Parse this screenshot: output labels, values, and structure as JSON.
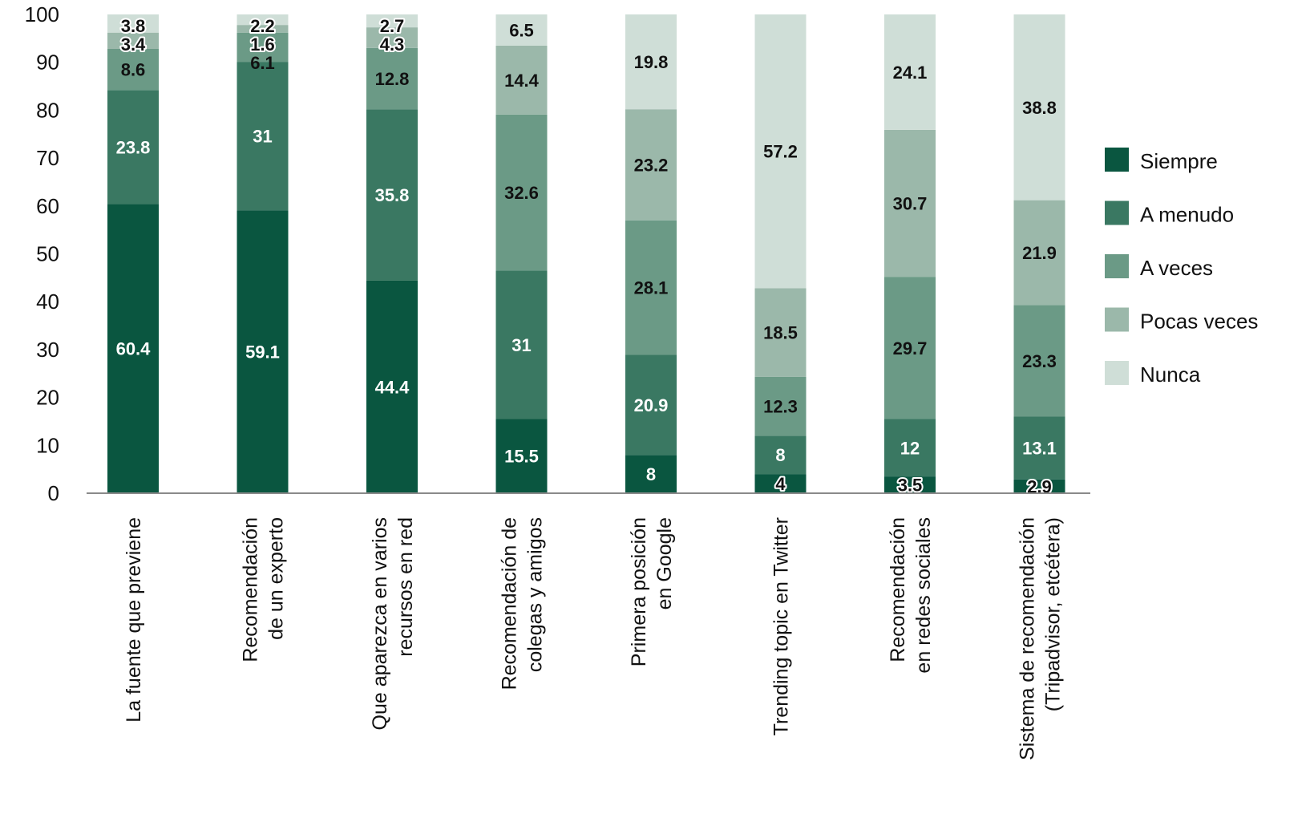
{
  "chart_data": {
    "type": "bar",
    "stacked": true,
    "ylim": [
      0,
      100
    ],
    "yticks": [
      0,
      10,
      20,
      30,
      40,
      50,
      60,
      70,
      80,
      90,
      100
    ],
    "legend_position": "right",
    "grid": false,
    "categories": [
      [
        "La fuente que previene"
      ],
      [
        "Recomendación",
        "de un experto"
      ],
      [
        "Que aparezca en varios",
        "recursos en red"
      ],
      [
        "Recomendación de",
        "colegas y amigos"
      ],
      [
        "Primera posición",
        "en Google"
      ],
      [
        "Trending topic en Twitter"
      ],
      [
        "Recomendación",
        "en redes sociales"
      ],
      [
        "Sistema de recomendación",
        "(Tripadvisor, etcétera)"
      ]
    ],
    "series": [
      {
        "name": "Siempre",
        "color": "#0a5640",
        "label_color": "#ffffff",
        "values": [
          60.4,
          59.1,
          44.4,
          15.5,
          8,
          4,
          3.5,
          2.9
        ],
        "labels": [
          "60.4",
          "59.1",
          "44.4",
          "15.5",
          "8",
          "4",
          "3.5",
          "2.9"
        ]
      },
      {
        "name": "A menudo",
        "color": "#3a7862",
        "label_color": "#ffffff",
        "values": [
          23.8,
          31,
          35.8,
          31,
          20.9,
          8,
          12,
          13.1
        ],
        "labels": [
          "23.8",
          "31",
          "35.8",
          "31",
          "20.9",
          "8",
          "12",
          "13.1"
        ]
      },
      {
        "name": "A veces",
        "color": "#6b9a86",
        "label_color": "#111111",
        "values": [
          8.6,
          6.1,
          12.8,
          32.6,
          28.1,
          12.3,
          29.7,
          23.3
        ],
        "labels": [
          "8.6",
          "6.1",
          "12.8",
          "32.6",
          "28.1",
          "12.3",
          "29.7",
          "23.3"
        ]
      },
      {
        "name": "Pocas veces",
        "color": "#9bb8aa",
        "label_color": "#111111",
        "values": [
          3.4,
          1.6,
          4.3,
          14.4,
          23.2,
          18.5,
          30.7,
          21.9
        ],
        "labels": [
          "3.4",
          "1.6",
          "4.3",
          "14.4",
          "23.2",
          "18.5",
          "30.7",
          "21.9"
        ]
      },
      {
        "name": "Nunca",
        "color": "#cfded7",
        "label_color": "#111111",
        "values": [
          3.8,
          2.2,
          2.7,
          6.5,
          19.8,
          57.2,
          24.1,
          38.8
        ],
        "labels": [
          "3.8",
          "2.2",
          "2.7",
          "6.5",
          "19.8",
          "57.2",
          "24.1",
          "38.8"
        ]
      }
    ]
  }
}
